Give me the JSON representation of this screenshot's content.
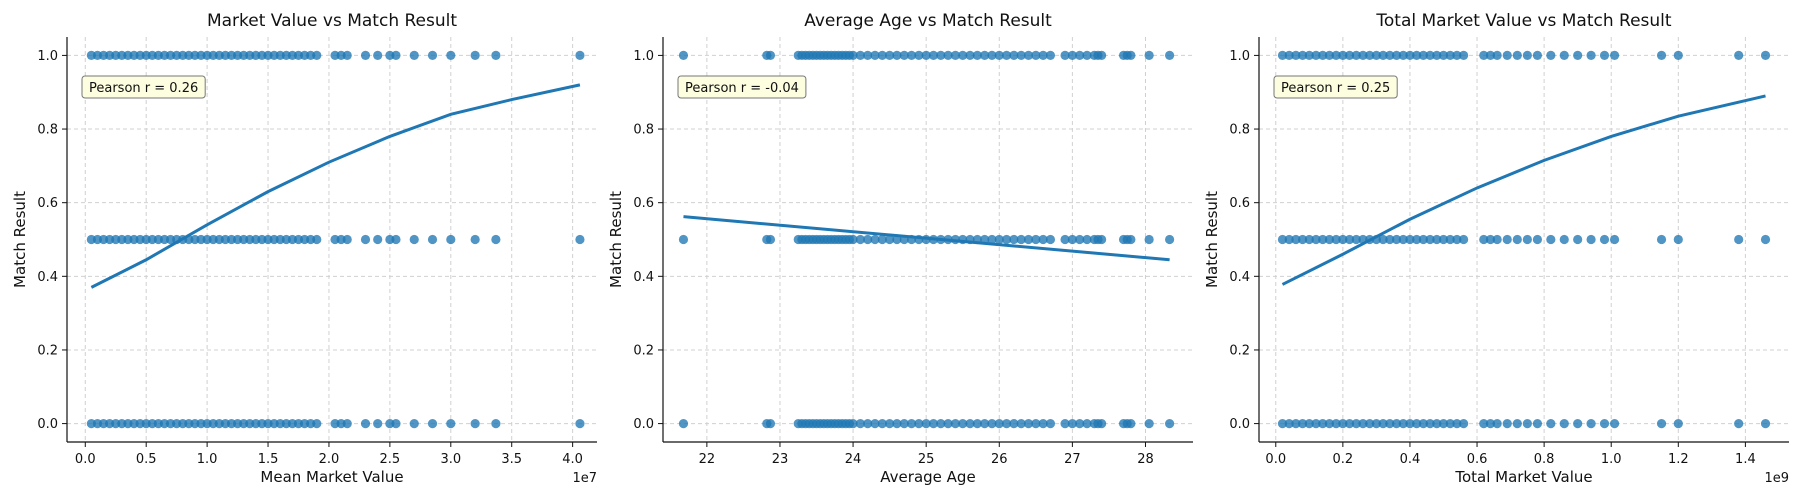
{
  "chart_data": [
    {
      "type": "scatter",
      "title": "Market Value vs Match Result",
      "xlabel": "Mean Market Value",
      "ylabel": "Match Result",
      "x_exponent_label": "1e7",
      "xlim": [
        -0.15,
        4.2
      ],
      "ylim": [
        -0.05,
        1.05
      ],
      "xticks": [
        0.0,
        0.5,
        1.0,
        1.5,
        2.0,
        2.5,
        3.0,
        3.5,
        4.0
      ],
      "xtick_labels": [
        "0.0",
        "0.5",
        "1.0",
        "1.5",
        "2.0",
        "2.5",
        "3.0",
        "3.5",
        "4.0"
      ],
      "yticks": [
        0.0,
        0.2,
        0.4,
        0.6,
        0.8,
        1.0
      ],
      "ytick_labels": [
        "0.0",
        "0.2",
        "0.4",
        "0.6",
        "0.8",
        "1.0"
      ],
      "grid": true,
      "annotation": "Pearson r = 0.26",
      "annotation_position": "top-left",
      "series": [
        {
          "y": 1.0,
          "x": [
            0.05,
            0.1,
            0.15,
            0.2,
            0.25,
            0.3,
            0.35,
            0.4,
            0.45,
            0.5,
            0.55,
            0.6,
            0.65,
            0.7,
            0.75,
            0.8,
            0.85,
            0.9,
            0.95,
            1.0,
            1.05,
            1.1,
            1.15,
            1.2,
            1.25,
            1.3,
            1.35,
            1.4,
            1.45,
            1.5,
            1.55,
            1.6,
            1.65,
            1.7,
            1.75,
            1.8,
            1.85,
            1.9,
            2.05,
            2.1,
            2.15,
            2.3,
            2.4,
            2.5,
            2.55,
            2.7,
            2.85,
            3.0,
            3.2,
            3.37,
            4.06
          ]
        },
        {
          "y": 0.5,
          "x": [
            0.05,
            0.1,
            0.15,
            0.2,
            0.25,
            0.3,
            0.35,
            0.4,
            0.45,
            0.5,
            0.55,
            0.6,
            0.65,
            0.7,
            0.75,
            0.8,
            0.85,
            0.9,
            0.95,
            1.0,
            1.05,
            1.1,
            1.15,
            1.2,
            1.25,
            1.3,
            1.35,
            1.4,
            1.45,
            1.5,
            1.55,
            1.6,
            1.65,
            1.7,
            1.75,
            1.8,
            1.85,
            1.9,
            2.05,
            2.1,
            2.15,
            2.3,
            2.4,
            2.5,
            2.55,
            2.7,
            2.85,
            3.0,
            3.2,
            3.37,
            4.06
          ]
        },
        {
          "y": 0.0,
          "x": [
            0.05,
            0.1,
            0.15,
            0.2,
            0.25,
            0.3,
            0.35,
            0.4,
            0.45,
            0.5,
            0.55,
            0.6,
            0.65,
            0.7,
            0.75,
            0.8,
            0.85,
            0.9,
            0.95,
            1.0,
            1.05,
            1.1,
            1.15,
            1.2,
            1.25,
            1.3,
            1.35,
            1.4,
            1.45,
            1.5,
            1.55,
            1.6,
            1.65,
            1.7,
            1.75,
            1.8,
            1.85,
            1.9,
            2.05,
            2.1,
            2.15,
            2.3,
            2.4,
            2.5,
            2.55,
            2.7,
            2.85,
            3.0,
            3.2,
            3.37,
            4.06
          ]
        }
      ],
      "fit_line": {
        "x": [
          0.05,
          0.5,
          1.0,
          1.5,
          2.0,
          2.5,
          3.0,
          3.5,
          4.06
        ],
        "y": [
          0.37,
          0.445,
          0.54,
          0.63,
          0.71,
          0.78,
          0.84,
          0.88,
          0.92
        ]
      }
    },
    {
      "type": "scatter",
      "title": "Average Age vs Match Result",
      "xlabel": "Average Age",
      "ylabel": "Match Result",
      "x_exponent_label": "",
      "xlim": [
        21.4,
        28.65
      ],
      "ylim": [
        -0.05,
        1.05
      ],
      "xticks": [
        22,
        23,
        24,
        25,
        26,
        27,
        28
      ],
      "xtick_labels": [
        "22",
        "23",
        "24",
        "25",
        "26",
        "27",
        "28"
      ],
      "yticks": [
        0.0,
        0.2,
        0.4,
        0.6,
        0.8,
        1.0
      ],
      "ytick_labels": [
        "0.0",
        "0.2",
        "0.4",
        "0.6",
        "0.8",
        "1.0"
      ],
      "grid": true,
      "annotation": "Pearson r = -0.04",
      "annotation_position": "top-left",
      "series": [
        {
          "y": 1.0,
          "x": [
            21.68,
            22.82,
            22.87,
            23.25,
            23.3,
            23.35,
            23.4,
            23.45,
            23.5,
            23.55,
            23.6,
            23.65,
            23.7,
            23.75,
            23.8,
            23.85,
            23.9,
            23.95,
            24.0,
            24.1,
            24.2,
            24.3,
            24.4,
            24.5,
            24.6,
            24.7,
            24.8,
            24.9,
            25.0,
            25.1,
            25.2,
            25.3,
            25.4,
            25.5,
            25.6,
            25.7,
            25.8,
            25.9,
            26.0,
            26.1,
            26.2,
            26.3,
            26.4,
            26.5,
            26.6,
            26.7,
            26.9,
            27.0,
            27.1,
            27.2,
            27.3,
            27.35,
            27.4,
            27.7,
            27.75,
            27.8,
            28.05,
            28.33
          ]
        },
        {
          "y": 0.5,
          "x": [
            21.68,
            22.82,
            22.87,
            23.25,
            23.3,
            23.35,
            23.4,
            23.45,
            23.5,
            23.55,
            23.6,
            23.65,
            23.7,
            23.75,
            23.8,
            23.85,
            23.9,
            23.95,
            24.0,
            24.1,
            24.2,
            24.3,
            24.4,
            24.5,
            24.6,
            24.7,
            24.8,
            24.9,
            25.0,
            25.1,
            25.2,
            25.3,
            25.4,
            25.5,
            25.6,
            25.7,
            25.8,
            25.9,
            26.0,
            26.1,
            26.2,
            26.3,
            26.4,
            26.5,
            26.6,
            26.7,
            26.9,
            27.0,
            27.1,
            27.2,
            27.3,
            27.35,
            27.4,
            27.7,
            27.75,
            27.8,
            28.05,
            28.33
          ]
        },
        {
          "y": 0.0,
          "x": [
            21.68,
            22.82,
            22.87,
            23.25,
            23.3,
            23.35,
            23.4,
            23.45,
            23.5,
            23.55,
            23.6,
            23.65,
            23.7,
            23.75,
            23.8,
            23.85,
            23.9,
            23.95,
            24.0,
            24.1,
            24.2,
            24.3,
            24.4,
            24.5,
            24.6,
            24.7,
            24.8,
            24.9,
            25.0,
            25.1,
            25.2,
            25.3,
            25.4,
            25.5,
            25.6,
            25.7,
            25.8,
            25.9,
            26.0,
            26.1,
            26.2,
            26.3,
            26.4,
            26.5,
            26.6,
            26.7,
            26.9,
            27.0,
            27.1,
            27.2,
            27.3,
            27.35,
            27.4,
            27.7,
            27.75,
            27.8,
            28.05,
            28.33
          ]
        }
      ],
      "fit_line": {
        "x": [
          21.68,
          28.33
        ],
        "y": [
          0.562,
          0.445
        ]
      }
    },
    {
      "type": "scatter",
      "title": "Total Market Value vs Match Result",
      "xlabel": "Total Market Value",
      "ylabel": "Match Result",
      "x_exponent_label": "1e9",
      "xlim": [
        -0.05,
        1.53
      ],
      "ylim": [
        -0.05,
        1.05
      ],
      "xticks": [
        0.0,
        0.2,
        0.4,
        0.6,
        0.8,
        1.0,
        1.2,
        1.4
      ],
      "xtick_labels": [
        "0.0",
        "0.2",
        "0.4",
        "0.6",
        "0.8",
        "1.0",
        "1.2",
        "1.4"
      ],
      "yticks": [
        0.0,
        0.2,
        0.4,
        0.6,
        0.8,
        1.0
      ],
      "ytick_labels": [
        "0.0",
        "0.2",
        "0.4",
        "0.6",
        "0.8",
        "1.0"
      ],
      "grid": true,
      "annotation": "Pearson r = 0.25",
      "annotation_position": "top-left",
      "series": [
        {
          "y": 1.0,
          "x": [
            0.02,
            0.04,
            0.06,
            0.08,
            0.1,
            0.12,
            0.14,
            0.16,
            0.18,
            0.2,
            0.22,
            0.24,
            0.26,
            0.28,
            0.3,
            0.32,
            0.34,
            0.36,
            0.38,
            0.4,
            0.42,
            0.44,
            0.46,
            0.48,
            0.5,
            0.52,
            0.54,
            0.56,
            0.62,
            0.64,
            0.66,
            0.69,
            0.72,
            0.75,
            0.78,
            0.82,
            0.86,
            0.9,
            0.94,
            0.98,
            1.01,
            1.15,
            1.2,
            1.38,
            1.46
          ]
        },
        {
          "y": 0.5,
          "x": [
            0.02,
            0.04,
            0.06,
            0.08,
            0.1,
            0.12,
            0.14,
            0.16,
            0.18,
            0.2,
            0.22,
            0.24,
            0.26,
            0.28,
            0.3,
            0.32,
            0.34,
            0.36,
            0.38,
            0.4,
            0.42,
            0.44,
            0.46,
            0.48,
            0.5,
            0.52,
            0.54,
            0.56,
            0.62,
            0.64,
            0.66,
            0.69,
            0.72,
            0.75,
            0.78,
            0.82,
            0.86,
            0.9,
            0.94,
            0.98,
            1.01,
            1.15,
            1.2,
            1.38,
            1.46
          ]
        },
        {
          "y": 0.0,
          "x": [
            0.02,
            0.04,
            0.06,
            0.08,
            0.1,
            0.12,
            0.14,
            0.16,
            0.18,
            0.2,
            0.22,
            0.24,
            0.26,
            0.28,
            0.3,
            0.32,
            0.34,
            0.36,
            0.38,
            0.4,
            0.42,
            0.44,
            0.46,
            0.48,
            0.5,
            0.52,
            0.54,
            0.56,
            0.62,
            0.64,
            0.66,
            0.69,
            0.72,
            0.75,
            0.78,
            0.82,
            0.86,
            0.9,
            0.94,
            0.98,
            1.01,
            1.15,
            1.2,
            1.38,
            1.46
          ]
        }
      ],
      "fit_line": {
        "x": [
          0.02,
          0.2,
          0.4,
          0.6,
          0.8,
          1.0,
          1.2,
          1.46
        ],
        "y": [
          0.378,
          0.46,
          0.555,
          0.64,
          0.715,
          0.78,
          0.835,
          0.89
        ]
      }
    }
  ]
}
